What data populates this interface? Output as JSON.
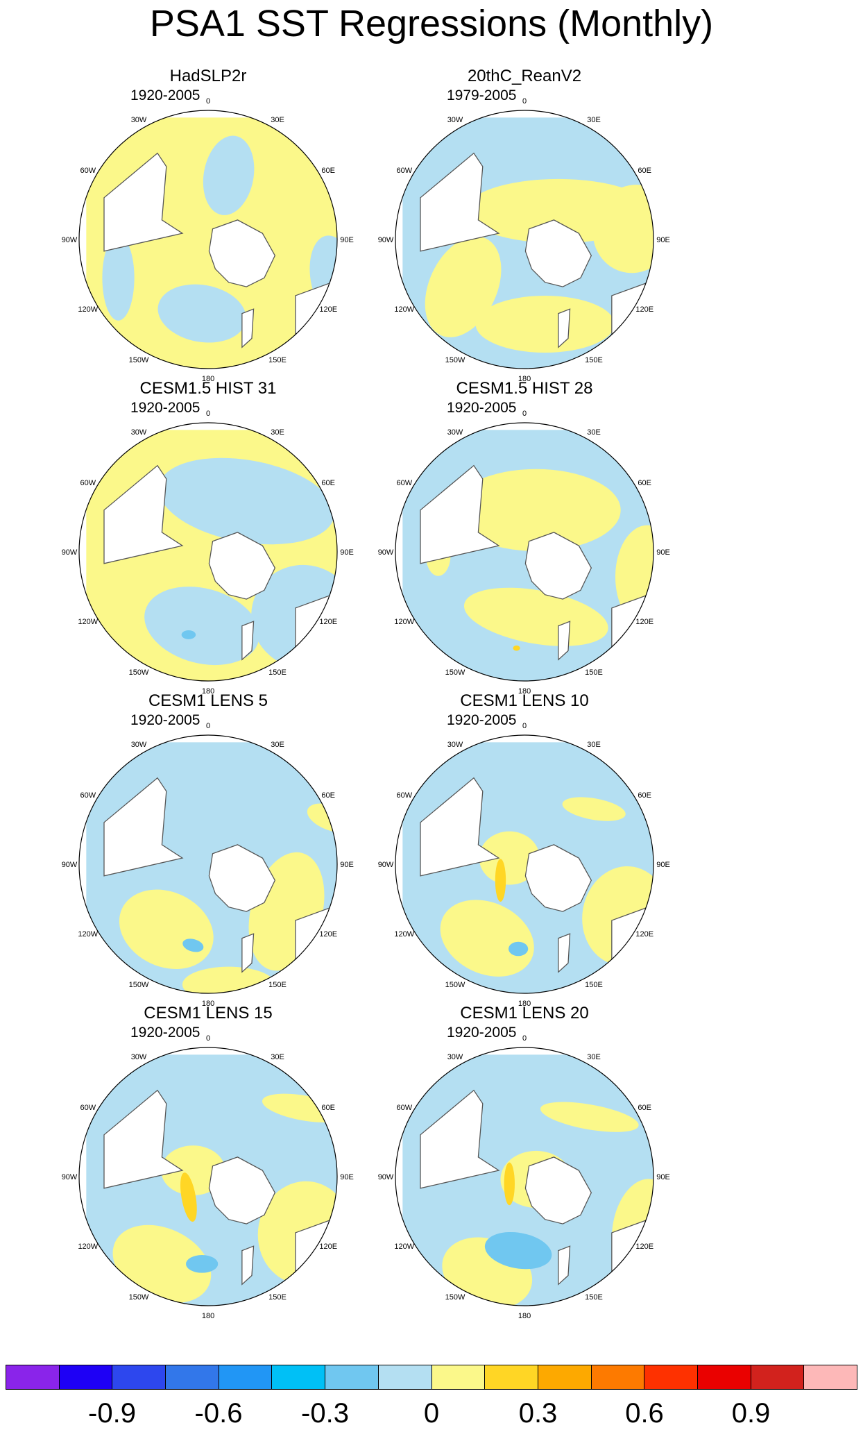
{
  "title": "PSA1 SST Regressions (Monthly)",
  "longitude_labels": [
    "0",
    "30E",
    "60E",
    "90E",
    "120E",
    "150E",
    "180",
    "150W",
    "120W",
    "90W",
    "60W",
    "30W"
  ],
  "panels": [
    {
      "title": "HadSLP2r",
      "period": "1920-2005"
    },
    {
      "title": "20thC_ReanV2",
      "period": "1979-2005"
    },
    {
      "title": "CESM1.5 HIST 31",
      "period": "1920-2005"
    },
    {
      "title": "CESM1.5 HIST 28",
      "period": "1920-2005"
    },
    {
      "title": "CESM1 LENS 5",
      "period": "1920-2005"
    },
    {
      "title": "CESM1 LENS 10",
      "period": "1920-2005"
    },
    {
      "title": "CESM1 LENS 15",
      "period": "1920-2005"
    },
    {
      "title": "CESM1 LENS 20",
      "period": "1920-2005"
    }
  ],
  "colorbar": {
    "colors": [
      "#8a24ea",
      "#1e00f5",
      "#2d47ee",
      "#3277ea",
      "#2196f5",
      "#00c0f6",
      "#70c7f0",
      "#b4dff2",
      "#fbf88a",
      "#ffd625",
      "#fda900",
      "#fd7a00",
      "#fe3100",
      "#ea0100",
      "#d2221d",
      "#fdb8b8"
    ],
    "tick_labels": [
      "-0.9",
      "-0.6",
      "-0.3",
      "0",
      "0.3",
      "0.6",
      "0.9"
    ]
  },
  "colors": {
    "negative_weak": "#b4dff2",
    "positive_weak": "#fbf88a",
    "negative_moderate": "#70c7f0",
    "positive_moderate": "#ffd625",
    "land": "#ffffff",
    "coastline": "#555555"
  }
}
